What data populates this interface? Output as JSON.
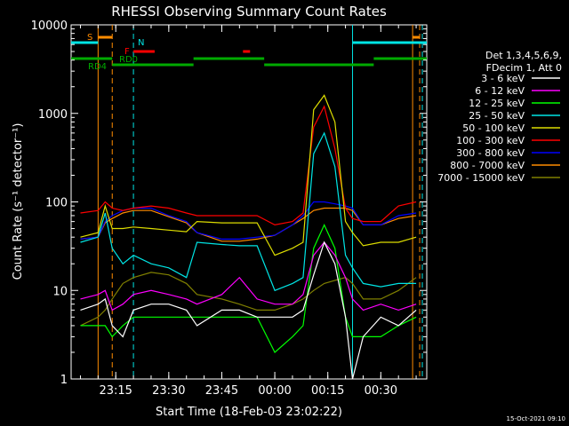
{
  "chart_data": {
    "type": "line",
    "title": "RHESSI Observing Summary Count Rates",
    "xlabel": "Start Time (18-Feb-03 23:02:22)",
    "ylabel": "Count Rate (s⁻¹ detector⁻¹)",
    "yscale": "log",
    "ylim": [
      1,
      10000
    ],
    "xlim": [
      "23:02:22",
      "00:43:00"
    ],
    "x_ticks": [
      "23:15",
      "23:30",
      "23:45",
      "00:00",
      "00:15",
      "00:30"
    ],
    "y_ticks": [
      "1",
      "10",
      "100",
      "1000",
      "10000"
    ],
    "legend_header": [
      "Det 1,3,4,5,6,9,",
      "FDecim 1, Att 0"
    ],
    "legend_position": "right",
    "timestamp": "15-Oct-2021 09:10",
    "flags": [
      {
        "label": "S",
        "color": "#ff8c00"
      },
      {
        "label": "N",
        "color": "#00e5e5"
      },
      {
        "label": "F",
        "color": "#ff0000"
      },
      {
        "label": "RD0",
        "color": "#00aa00"
      },
      {
        "label": "RD4",
        "color": "#00aa00"
      }
    ],
    "series": [
      {
        "name": "3 - 6 keV",
        "color": "#ffffff",
        "x": [
          "23:05",
          "23:10",
          "23:12",
          "23:14",
          "23:17",
          "23:20",
          "23:25",
          "23:30",
          "23:35",
          "23:38",
          "23:45",
          "23:50",
          "23:55",
          "00:00",
          "00:05",
          "00:08",
          "00:11",
          "00:14",
          "00:17",
          "00:20",
          "00:22",
          "00:25",
          "00:30",
          "00:35",
          "00:40"
        ],
        "values": [
          6,
          7,
          8,
          4,
          3,
          6,
          7,
          7,
          6,
          4,
          6,
          6,
          5,
          5,
          5,
          6,
          15,
          35,
          20,
          5,
          1,
          3,
          5,
          4,
          6
        ]
      },
      {
        "name": "6 - 12 keV",
        "color": "#ff00ff",
        "x": [
          "23:05",
          "23:10",
          "23:12",
          "23:14",
          "23:17",
          "23:20",
          "23:25",
          "23:30",
          "23:35",
          "23:38",
          "23:45",
          "23:50",
          "23:55",
          "00:00",
          "00:05",
          "00:08",
          "00:11",
          "00:14",
          "00:17",
          "00:20",
          "00:22",
          "00:25",
          "00:30",
          "00:35",
          "00:40"
        ],
        "values": [
          8,
          9,
          10,
          6,
          7,
          9,
          10,
          9,
          8,
          7,
          9,
          14,
          8,
          7,
          7,
          9,
          25,
          35,
          25,
          14,
          8,
          6,
          7,
          6,
          7
        ]
      },
      {
        "name": "12 - 25 keV",
        "color": "#00ff00",
        "x": [
          "23:05",
          "23:10",
          "23:12",
          "23:14",
          "23:17",
          "23:20",
          "23:25",
          "23:30",
          "23:35",
          "23:38",
          "23:45",
          "23:50",
          "23:55",
          "00:00",
          "00:05",
          "00:08",
          "00:11",
          "00:14",
          "00:17",
          "00:20",
          "00:22",
          "00:25",
          "00:30",
          "00:35",
          "00:40"
        ],
        "values": [
          4,
          4,
          4,
          3,
          4,
          5,
          5,
          5,
          5,
          5,
          5,
          5,
          5,
          2,
          3,
          4,
          30,
          55,
          30,
          5,
          3,
          3,
          3,
          4,
          5
        ]
      },
      {
        "name": "25 - 50 keV",
        "color": "#00e5e5",
        "x": [
          "23:05",
          "23:10",
          "23:12",
          "23:14",
          "23:17",
          "23:20",
          "23:25",
          "23:30",
          "23:35",
          "23:38",
          "23:45",
          "23:50",
          "23:55",
          "00:00",
          "00:05",
          "00:08",
          "00:11",
          "00:14",
          "00:17",
          "00:20",
          "00:22",
          "00:25",
          "00:30",
          "00:35",
          "00:40"
        ],
        "values": [
          35,
          40,
          75,
          30,
          20,
          25,
          20,
          18,
          14,
          35,
          33,
          32,
          32,
          10,
          12,
          14,
          350,
          600,
          250,
          25,
          18,
          12,
          11,
          12,
          12
        ]
      },
      {
        "name": "50 - 100 keV",
        "color": "#dddd00",
        "x": [
          "23:05",
          "23:10",
          "23:12",
          "23:14",
          "23:17",
          "23:20",
          "23:25",
          "23:30",
          "23:35",
          "23:38",
          "23:45",
          "23:50",
          "23:55",
          "00:00",
          "00:05",
          "00:08",
          "00:11",
          "00:14",
          "00:17",
          "00:20",
          "00:22",
          "00:25",
          "00:30",
          "00:35",
          "00:40"
        ],
        "values": [
          40,
          45,
          90,
          50,
          50,
          52,
          50,
          48,
          46,
          60,
          58,
          58,
          58,
          25,
          30,
          35,
          1100,
          1600,
          800,
          60,
          45,
          32,
          35,
          35,
          40
        ]
      },
      {
        "name": "100 - 300 keV",
        "color": "#ff0000",
        "x": [
          "23:05",
          "23:10",
          "23:12",
          "23:14",
          "23:17",
          "23:20",
          "23:25",
          "23:30",
          "23:35",
          "23:38",
          "23:45",
          "23:50",
          "23:55",
          "00:00",
          "00:05",
          "00:08",
          "00:11",
          "00:14",
          "00:17",
          "00:20",
          "00:22",
          "00:25",
          "00:30",
          "00:35",
          "00:40"
        ],
        "values": [
          75,
          80,
          100,
          85,
          80,
          85,
          90,
          85,
          75,
          70,
          70,
          70,
          70,
          55,
          60,
          75,
          700,
          1200,
          400,
          85,
          65,
          60,
          60,
          90,
          100
        ]
      },
      {
        "name": "300 - 800 keV",
        "color": "#0000ff",
        "x": [
          "23:05",
          "23:10",
          "23:12",
          "23:14",
          "23:17",
          "23:20",
          "23:25",
          "23:30",
          "23:35",
          "23:38",
          "23:45",
          "23:50",
          "23:55",
          "00:00",
          "00:05",
          "00:08",
          "00:11",
          "00:14",
          "00:17",
          "00:20",
          "00:22",
          "00:25",
          "00:30",
          "00:35",
          "00:40"
        ],
        "values": [
          38,
          40,
          60,
          70,
          80,
          85,
          85,
          70,
          60,
          45,
          38,
          38,
          40,
          42,
          55,
          70,
          100,
          100,
          95,
          90,
          85,
          55,
          55,
          70,
          75
        ]
      },
      {
        "name": "800 - 7000 keV",
        "color": "#ff8c00",
        "x": [
          "23:05",
          "23:10",
          "23:12",
          "23:14",
          "23:17",
          "23:20",
          "23:25",
          "23:30",
          "23:35",
          "23:38",
          "23:45",
          "23:50",
          "23:55",
          "00:00",
          "00:05",
          "00:08",
          "00:11",
          "00:14",
          "00:17",
          "00:20",
          "00:22",
          "00:25",
          "00:30",
          "00:35",
          "00:40"
        ],
        "values": [
          38,
          40,
          58,
          65,
          75,
          80,
          80,
          68,
          58,
          45,
          36,
          36,
          38,
          42,
          55,
          65,
          80,
          85,
          85,
          85,
          80,
          55,
          55,
          65,
          70
        ]
      },
      {
        "name": "7000 - 15000 keV",
        "color": "#808000",
        "x": [
          "23:05",
          "23:10",
          "23:12",
          "23:14",
          "23:17",
          "23:20",
          "23:25",
          "23:30",
          "23:35",
          "23:38",
          "23:45",
          "23:50",
          "23:55",
          "00:00",
          "00:05",
          "00:08",
          "00:11",
          "00:14",
          "00:17",
          "00:20",
          "00:22",
          "00:25",
          "00:30",
          "00:35",
          "00:40"
        ],
        "values": [
          4,
          5,
          6,
          8,
          12,
          14,
          16,
          15,
          12,
          9,
          8,
          7,
          6,
          6,
          7,
          8,
          10,
          12,
          13,
          14,
          12,
          8,
          8,
          10,
          14
        ]
      }
    ]
  }
}
